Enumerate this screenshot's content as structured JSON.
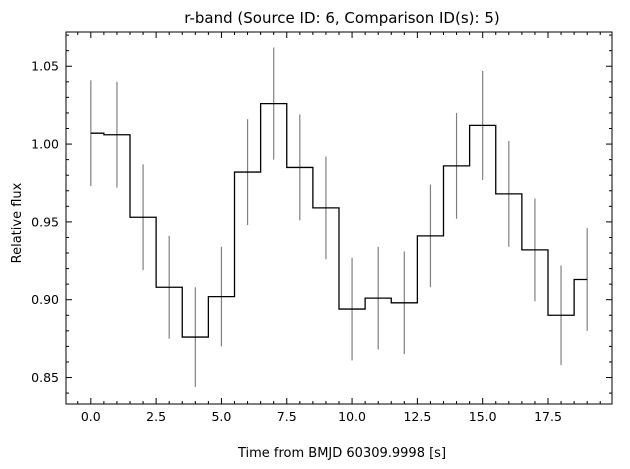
{
  "chart_data": {
    "type": "line",
    "drawstyle": "steps-mid",
    "title": "r-band (Source ID: 6, Comparison ID(s): 5)",
    "xlabel": "Time from BMJD 60309.9998 [s]",
    "ylabel": "Relative flux",
    "xlim": [
      -0.95,
      19.95
    ],
    "ylim": [
      0.833,
      1.072
    ],
    "xticks": [
      0.0,
      2.5,
      5.0,
      7.5,
      10.0,
      12.5,
      15.0,
      17.5
    ],
    "xtick_labels": [
      "0.0",
      "2.5",
      "5.0",
      "7.5",
      "10.0",
      "12.5",
      "15.0",
      "17.5"
    ],
    "yticks": [
      0.85,
      0.9,
      0.95,
      1.0,
      1.05
    ],
    "ytick_labels": [
      "0.85",
      "0.90",
      "0.95",
      "1.00",
      "1.05"
    ],
    "grid": false,
    "series": [
      {
        "x": [
          0,
          1,
          2,
          3,
          4,
          5,
          6,
          7,
          8,
          9,
          10,
          11,
          12,
          13,
          14,
          15,
          16,
          17,
          18,
          19
        ],
        "y": [
          1.007,
          1.006,
          0.953,
          0.908,
          0.876,
          0.902,
          0.982,
          1.026,
          0.985,
          0.959,
          0.894,
          0.901,
          0.898,
          0.941,
          0.986,
          1.012,
          0.968,
          0.932,
          0.89,
          0.913
        ],
        "yerr": [
          0.034,
          0.034,
          0.034,
          0.033,
          0.032,
          0.032,
          0.034,
          0.036,
          0.034,
          0.033,
          0.033,
          0.033,
          0.033,
          0.033,
          0.034,
          0.035,
          0.034,
          0.033,
          0.032,
          0.033
        ],
        "color": "#000000",
        "errorbar_color": "#808080"
      }
    ]
  }
}
